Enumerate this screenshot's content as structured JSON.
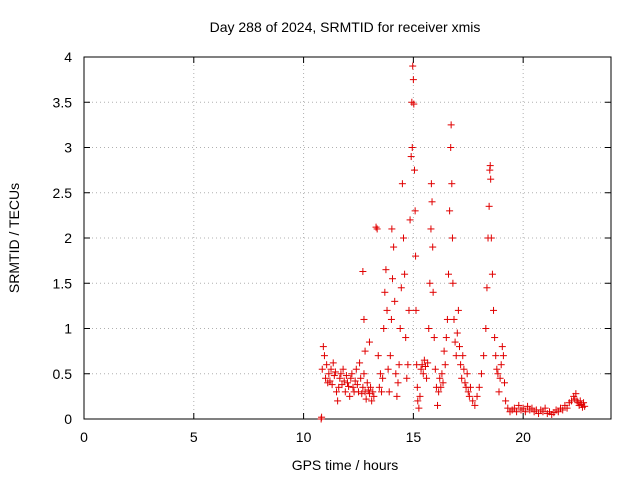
{
  "chart_data": {
    "type": "scatter",
    "title": "Day 288 of 2024, SRMTID for receiver xmis",
    "xlabel": "GPS time / hours",
    "ylabel": "SRMTID / TECUs",
    "xlim": [
      0,
      24
    ],
    "ylim": [
      0,
      4
    ],
    "xticks": [
      0,
      5,
      10,
      15,
      20
    ],
    "xtick_labels": [
      "0",
      "5",
      "10",
      "15",
      "20"
    ],
    "yticks": [
      0,
      0.5,
      1,
      1.5,
      2,
      2.5,
      3,
      3.5,
      4
    ],
    "ytick_labels": [
      "0",
      "0.5",
      "1",
      "1.5",
      "2",
      "2.5",
      "3",
      "3.5",
      "4"
    ],
    "grid": true,
    "marker": "+",
    "color": "#e00000",
    "series": [
      {
        "name": "SRMTID",
        "points": [
          [
            10.8,
            0.0
          ],
          [
            10.82,
            0.02
          ],
          [
            10.85,
            0.55
          ],
          [
            10.9,
            0.8
          ],
          [
            10.95,
            0.7
          ],
          [
            11.0,
            0.45
          ],
          [
            11.05,
            0.6
          ],
          [
            11.1,
            0.4
          ],
          [
            11.15,
            0.5
          ],
          [
            11.2,
            0.42
          ],
          [
            11.25,
            0.55
          ],
          [
            11.3,
            0.38
          ],
          [
            11.35,
            0.62
          ],
          [
            11.4,
            0.48
          ],
          [
            11.45,
            0.52
          ],
          [
            11.5,
            0.3
          ],
          [
            11.55,
            0.2
          ],
          [
            11.6,
            0.35
          ],
          [
            11.65,
            0.45
          ],
          [
            11.7,
            0.5
          ],
          [
            11.75,
            0.38
          ],
          [
            11.8,
            0.55
          ],
          [
            11.85,
            0.42
          ],
          [
            11.9,
            0.3
          ],
          [
            11.95,
            0.48
          ],
          [
            12.0,
            0.4
          ],
          [
            12.05,
            0.36
          ],
          [
            12.1,
            0.25
          ],
          [
            12.15,
            0.45
          ],
          [
            12.2,
            0.5
          ],
          [
            12.25,
            0.35
          ],
          [
            12.3,
            0.3
          ],
          [
            12.35,
            0.42
          ],
          [
            12.4,
            0.55
          ],
          [
            12.45,
            0.38
          ],
          [
            12.5,
            0.3
          ],
          [
            12.55,
            0.62
          ],
          [
            12.6,
            0.45
          ],
          [
            12.65,
            0.28
          ],
          [
            12.7,
            0.35
          ],
          [
            12.75,
            0.5
          ],
          [
            12.8,
            0.3
          ],
          [
            12.85,
            0.22
          ],
          [
            12.9,
            0.4
          ],
          [
            12.95,
            0.32
          ],
          [
            13.0,
            0.28
          ],
          [
            13.05,
            0.35
          ],
          [
            13.1,
            0.2
          ],
          [
            13.15,
            0.3
          ],
          [
            13.2,
            0.25
          ],
          [
            12.7,
            1.63
          ],
          [
            12.75,
            1.1
          ],
          [
            12.8,
            0.75
          ],
          [
            13.0,
            0.85
          ],
          [
            13.3,
            2.12
          ],
          [
            13.35,
            2.1
          ],
          [
            13.4,
            0.7
          ],
          [
            13.45,
            0.35
          ],
          [
            13.5,
            0.5
          ],
          [
            13.55,
            0.3
          ],
          [
            13.6,
            0.45
          ],
          [
            13.65,
            1.0
          ],
          [
            13.7,
            1.4
          ],
          [
            13.75,
            1.65
          ],
          [
            13.8,
            1.2
          ],
          [
            13.85,
            0.55
          ],
          [
            13.9,
            0.3
          ],
          [
            13.95,
            0.7
          ],
          [
            14.0,
            1.1
          ],
          [
            14.02,
            2.1
          ],
          [
            14.05,
            1.55
          ],
          [
            14.1,
            1.9
          ],
          [
            14.15,
            1.3
          ],
          [
            14.2,
            0.5
          ],
          [
            14.25,
            0.25
          ],
          [
            14.3,
            0.4
          ],
          [
            14.35,
            0.6
          ],
          [
            14.4,
            1.0
          ],
          [
            14.45,
            1.45
          ],
          [
            14.5,
            2.6
          ],
          [
            14.55,
            2.0
          ],
          [
            14.6,
            1.6
          ],
          [
            14.65,
            0.9
          ],
          [
            14.7,
            0.45
          ],
          [
            14.75,
            0.6
          ],
          [
            14.8,
            1.2
          ],
          [
            14.85,
            2.2
          ],
          [
            14.9,
            2.9
          ],
          [
            14.93,
            3.5
          ],
          [
            14.95,
            3.0
          ],
          [
            14.97,
            3.9
          ],
          [
            15.0,
            3.75
          ],
          [
            15.02,
            3.48
          ],
          [
            15.05,
            2.75
          ],
          [
            15.08,
            2.3
          ],
          [
            15.1,
            1.8
          ],
          [
            15.12,
            1.2
          ],
          [
            15.15,
            0.6
          ],
          [
            15.18,
            0.35
          ],
          [
            15.2,
            0.2
          ],
          [
            15.25,
            0.12
          ],
          [
            15.3,
            0.25
          ],
          [
            15.35,
            0.55
          ],
          [
            15.4,
            0.6
          ],
          [
            15.45,
            0.5
          ],
          [
            15.5,
            0.65
          ],
          [
            15.55,
            0.58
          ],
          [
            15.6,
            0.45
          ],
          [
            15.65,
            0.62
          ],
          [
            15.7,
            1.0
          ],
          [
            15.75,
            1.5
          ],
          [
            15.8,
            2.1
          ],
          [
            15.82,
            2.6
          ],
          [
            15.85,
            2.4
          ],
          [
            15.88,
            1.9
          ],
          [
            15.9,
            1.4
          ],
          [
            15.95,
            0.9
          ],
          [
            16.0,
            0.55
          ],
          [
            16.05,
            0.35
          ],
          [
            16.1,
            0.15
          ],
          [
            16.15,
            0.3
          ],
          [
            16.2,
            0.45
          ],
          [
            16.25,
            0.35
          ],
          [
            16.3,
            0.5
          ],
          [
            16.35,
            0.4
          ],
          [
            16.4,
            0.75
          ],
          [
            16.45,
            0.6
          ],
          [
            16.5,
            0.9
          ],
          [
            16.55,
            1.1
          ],
          [
            16.6,
            1.6
          ],
          [
            16.65,
            2.3
          ],
          [
            16.7,
            3.0
          ],
          [
            16.72,
            3.25
          ],
          [
            16.75,
            2.6
          ],
          [
            16.78,
            2.0
          ],
          [
            16.8,
            1.5
          ],
          [
            16.85,
            1.1
          ],
          [
            16.9,
            0.85
          ],
          [
            16.95,
            0.7
          ],
          [
            17.0,
            0.95
          ],
          [
            17.05,
            1.2
          ],
          [
            17.1,
            0.8
          ],
          [
            17.15,
            0.6
          ],
          [
            17.2,
            0.45
          ],
          [
            17.25,
            0.7
          ],
          [
            17.3,
            0.55
          ],
          [
            17.35,
            0.4
          ],
          [
            17.4,
            0.35
          ],
          [
            17.45,
            0.5
          ],
          [
            17.5,
            0.3
          ],
          [
            17.55,
            0.25
          ],
          [
            17.6,
            0.35
          ],
          [
            17.7,
            0.2
          ],
          [
            17.8,
            0.15
          ],
          [
            17.9,
            0.25
          ],
          [
            18.0,
            0.35
          ],
          [
            18.1,
            0.5
          ],
          [
            18.2,
            0.7
          ],
          [
            18.3,
            1.0
          ],
          [
            18.35,
            1.45
          ],
          [
            18.4,
            2.0
          ],
          [
            18.45,
            2.35
          ],
          [
            18.48,
            2.75
          ],
          [
            18.5,
            2.8
          ],
          [
            18.52,
            2.65
          ],
          [
            18.55,
            2.0
          ],
          [
            18.6,
            1.6
          ],
          [
            18.65,
            1.2
          ],
          [
            18.7,
            0.9
          ],
          [
            18.75,
            0.7
          ],
          [
            18.8,
            0.55
          ],
          [
            18.85,
            0.5
          ],
          [
            18.9,
            0.3
          ],
          [
            18.95,
            0.45
          ],
          [
            19.0,
            0.6
          ],
          [
            19.05,
            0.8
          ],
          [
            19.1,
            0.7
          ],
          [
            19.15,
            0.4
          ],
          [
            19.2,
            0.2
          ],
          [
            19.3,
            0.12
          ],
          [
            19.4,
            0.08
          ],
          [
            19.5,
            0.1
          ],
          [
            19.6,
            0.12
          ],
          [
            19.7,
            0.08
          ],
          [
            19.8,
            0.15
          ],
          [
            19.9,
            0.1
          ],
          [
            20.0,
            0.12
          ],
          [
            20.1,
            0.08
          ],
          [
            20.2,
            0.14
          ],
          [
            20.3,
            0.1
          ],
          [
            20.4,
            0.12
          ],
          [
            20.5,
            0.08
          ],
          [
            20.6,
            0.1
          ],
          [
            20.7,
            0.06
          ],
          [
            20.8,
            0.1
          ],
          [
            20.9,
            0.08
          ],
          [
            21.0,
            0.12
          ],
          [
            21.1,
            0.06
          ],
          [
            21.2,
            0.08
          ],
          [
            21.3,
            0.05
          ],
          [
            21.4,
            0.07
          ],
          [
            21.5,
            0.1
          ],
          [
            21.6,
            0.08
          ],
          [
            21.7,
            0.12
          ],
          [
            21.8,
            0.1
          ],
          [
            21.9,
            0.15
          ],
          [
            22.0,
            0.12
          ],
          [
            22.1,
            0.18
          ],
          [
            22.2,
            0.2
          ],
          [
            22.3,
            0.25
          ],
          [
            22.35,
            0.22
          ],
          [
            22.4,
            0.28
          ],
          [
            22.45,
            0.2
          ],
          [
            22.5,
            0.18
          ],
          [
            22.55,
            0.15
          ],
          [
            22.6,
            0.2
          ],
          [
            22.65,
            0.16
          ],
          [
            22.7,
            0.13
          ],
          [
            22.75,
            0.18
          ],
          [
            22.8,
            0.14
          ]
        ]
      }
    ]
  }
}
